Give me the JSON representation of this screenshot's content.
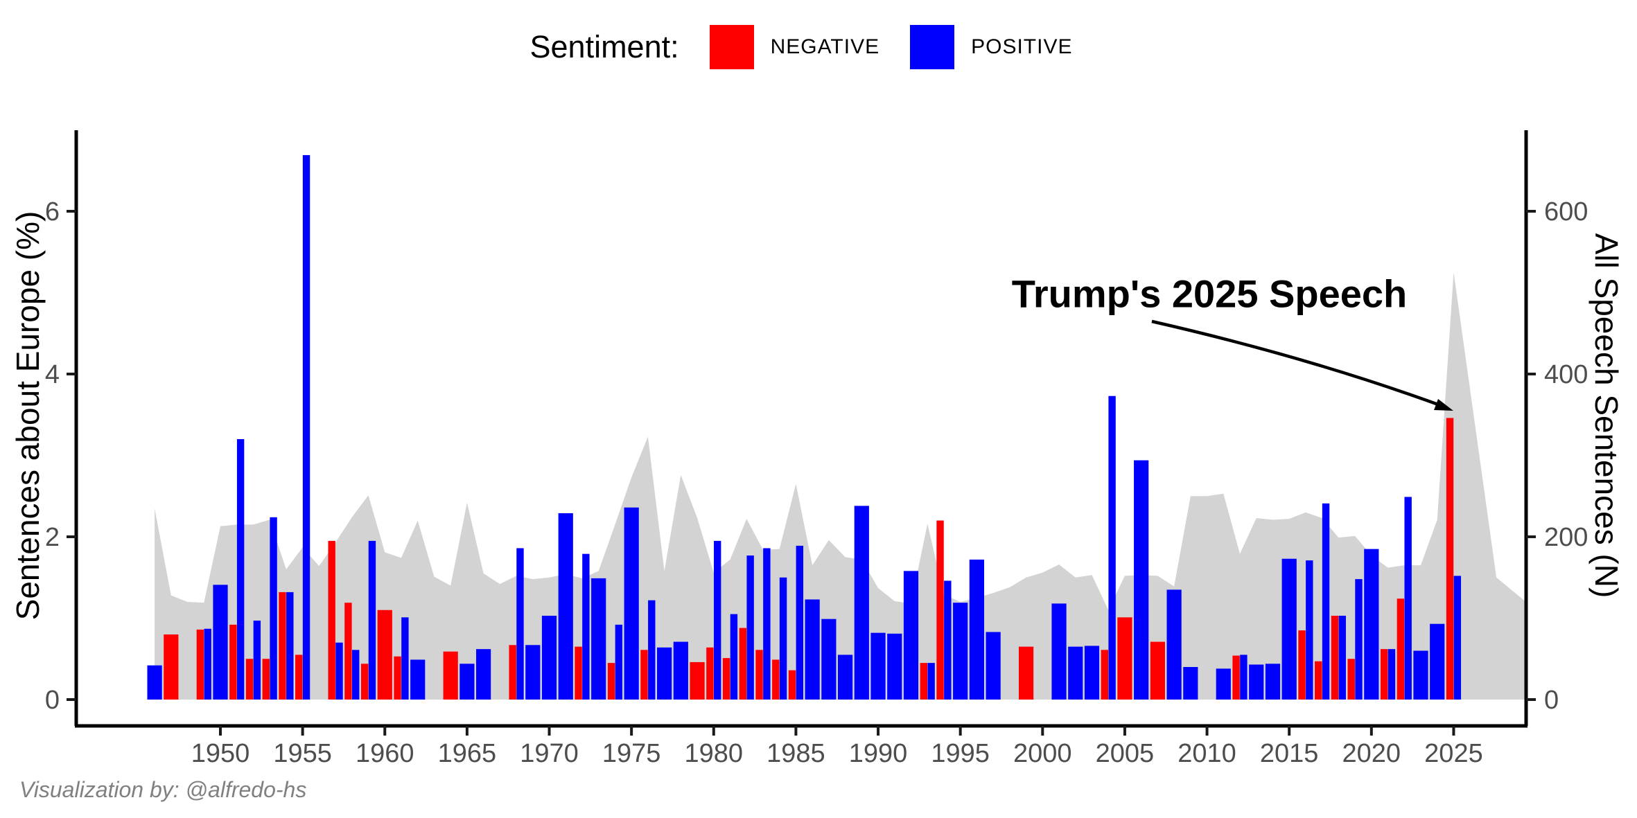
{
  "legend": {
    "title": "Sentiment:",
    "items": [
      {
        "label": "NEGATIVE",
        "color": "#FF0000"
      },
      {
        "label": "POSITIVE",
        "color": "#0000FF"
      }
    ]
  },
  "annotation": {
    "text": "Trump's 2025 Speech"
  },
  "attribution": {
    "text": "Visualization by: @alfredo-hs"
  },
  "chart_data": {
    "type": "bar",
    "title": "",
    "xlabel": "",
    "ylabel_left": "Sentences about Europe (%)",
    "ylabel_right": "All Speech Sentences (N)",
    "x_ticks": [
      1950,
      1955,
      1960,
      1965,
      1970,
      1975,
      1980,
      1985,
      1990,
      1995,
      2000,
      2005,
      2010,
      2015,
      2020,
      2025
    ],
    "y_ticks_left": [
      0,
      2,
      4,
      6
    ],
    "y_ticks_right": [
      0,
      200,
      400,
      600
    ],
    "ylim_left": [
      0,
      7
    ],
    "ylim_right": [
      0,
      700
    ],
    "legend_position": "top",
    "grid": false,
    "colors": {
      "negative": "#FF0000",
      "positive": "#0000FF",
      "total_area": "#D3D3D3"
    },
    "series_description": "negative/positive = % of speech sentences about Europe by sentiment (left axis); total_n = all speech sentences (right axis, gray area)",
    "years": [
      {
        "year": 1946,
        "negative": null,
        "positive": 0.42,
        "total_n": 235
      },
      {
        "year": 1947,
        "negative": 0.8,
        "positive": null,
        "total_n": 128
      },
      {
        "year": 1948,
        "negative": null,
        "positive": null,
        "total_n": 120
      },
      {
        "year": 1949,
        "negative": 0.86,
        "positive": 0.87,
        "total_n": 119
      },
      {
        "year": 1950,
        "negative": null,
        "positive": 1.41,
        "total_n": 213
      },
      {
        "year": 1951,
        "negative": 0.92,
        "positive": 3.2,
        "total_n": 215
      },
      {
        "year": 1952,
        "negative": 0.5,
        "positive": 0.97,
        "total_n": 215
      },
      {
        "year": 1953,
        "negative": 0.5,
        "positive": 2.24,
        "total_n": 221
      },
      {
        "year": 1954,
        "negative": 1.32,
        "positive": 1.32,
        "total_n": 160
      },
      {
        "year": 1955,
        "negative": 0.55,
        "positive": 6.69,
        "total_n": 187
      },
      {
        "year": 1956,
        "negative": null,
        "positive": null,
        "total_n": 164
      },
      {
        "year": 1957,
        "negative": 1.95,
        "positive": 0.7,
        "total_n": 193
      },
      {
        "year": 1958,
        "negative": 1.19,
        "positive": 0.61,
        "total_n": 224
      },
      {
        "year": 1959,
        "negative": 0.44,
        "positive": 1.95,
        "total_n": 251
      },
      {
        "year": 1960,
        "negative": 1.1,
        "positive": null,
        "total_n": 181
      },
      {
        "year": 1961,
        "negative": 0.53,
        "positive": 1.01,
        "total_n": 174
      },
      {
        "year": 1962,
        "negative": null,
        "positive": 0.49,
        "total_n": 220
      },
      {
        "year": 1963,
        "negative": null,
        "positive": null,
        "total_n": 151
      },
      {
        "year": 1964,
        "negative": 0.59,
        "positive": null,
        "total_n": 140
      },
      {
        "year": 1965,
        "negative": null,
        "positive": 0.44,
        "total_n": 242
      },
      {
        "year": 1966,
        "negative": null,
        "positive": 0.62,
        "total_n": 155
      },
      {
        "year": 1967,
        "negative": null,
        "positive": null,
        "total_n": 142
      },
      {
        "year": 1968,
        "negative": 0.67,
        "positive": 1.86,
        "total_n": 152
      },
      {
        "year": 1969,
        "negative": null,
        "positive": 0.67,
        "total_n": 148
      },
      {
        "year": 1970,
        "negative": null,
        "positive": 1.03,
        "total_n": 150
      },
      {
        "year": 1971,
        "negative": null,
        "positive": 2.29,
        "total_n": 154
      },
      {
        "year": 1972,
        "negative": 0.65,
        "positive": 1.79,
        "total_n": 149
      },
      {
        "year": 1973,
        "negative": null,
        "positive": 1.49,
        "total_n": 158
      },
      {
        "year": 1974,
        "negative": 0.45,
        "positive": 0.92,
        "total_n": 215
      },
      {
        "year": 1975,
        "negative": null,
        "positive": 2.36,
        "total_n": 273
      },
      {
        "year": 1976,
        "negative": 0.61,
        "positive": 1.22,
        "total_n": 323
      },
      {
        "year": 1977,
        "negative": null,
        "positive": 0.64,
        "total_n": 158
      },
      {
        "year": 1978,
        "negative": null,
        "positive": 0.71,
        "total_n": 276
      },
      {
        "year": 1979,
        "negative": 0.46,
        "positive": null,
        "total_n": 223
      },
      {
        "year": 1980,
        "negative": 0.64,
        "positive": 1.95,
        "total_n": 156
      },
      {
        "year": 1981,
        "negative": 0.51,
        "positive": 1.05,
        "total_n": 172
      },
      {
        "year": 1982,
        "negative": 0.88,
        "positive": 1.77,
        "total_n": 222
      },
      {
        "year": 1983,
        "negative": 0.61,
        "positive": 1.86,
        "total_n": 184
      },
      {
        "year": 1984,
        "negative": 0.49,
        "positive": 1.5,
        "total_n": 185
      },
      {
        "year": 1985,
        "negative": 0.36,
        "positive": 1.89,
        "total_n": 265
      },
      {
        "year": 1986,
        "negative": null,
        "positive": 1.23,
        "total_n": 165
      },
      {
        "year": 1987,
        "negative": null,
        "positive": 0.99,
        "total_n": 196
      },
      {
        "year": 1988,
        "negative": null,
        "positive": 0.55,
        "total_n": 175
      },
      {
        "year": 1989,
        "negative": null,
        "positive": 2.38,
        "total_n": 172
      },
      {
        "year": 1990,
        "negative": null,
        "positive": 0.82,
        "total_n": 137
      },
      {
        "year": 1991,
        "negative": null,
        "positive": 0.81,
        "total_n": 121
      },
      {
        "year": 1992,
        "negative": null,
        "positive": 1.58,
        "total_n": 118
      },
      {
        "year": 1993,
        "negative": 0.45,
        "positive": 0.45,
        "total_n": 216
      },
      {
        "year": 1994,
        "negative": 2.2,
        "positive": 1.46,
        "total_n": 129
      },
      {
        "year": 1995,
        "negative": null,
        "positive": 1.19,
        "total_n": 120
      },
      {
        "year": 1996,
        "negative": null,
        "positive": 1.72,
        "total_n": 125
      },
      {
        "year": 1997,
        "negative": null,
        "positive": 0.83,
        "total_n": 131
      },
      {
        "year": 1998,
        "negative": null,
        "positive": null,
        "total_n": 138
      },
      {
        "year": 1999,
        "negative": 0.65,
        "positive": null,
        "total_n": 150
      },
      {
        "year": 2000,
        "negative": null,
        "positive": null,
        "total_n": 156
      },
      {
        "year": 2001,
        "negative": null,
        "positive": 1.18,
        "total_n": 166
      },
      {
        "year": 2002,
        "negative": null,
        "positive": 0.65,
        "total_n": 150
      },
      {
        "year": 2003,
        "negative": null,
        "positive": 0.66,
        "total_n": 153
      },
      {
        "year": 2004,
        "negative": 0.61,
        "positive": 3.73,
        "total_n": 110
      },
      {
        "year": 2005,
        "negative": 1.01,
        "positive": null,
        "total_n": 152
      },
      {
        "year": 2006,
        "negative": null,
        "positive": 2.94,
        "total_n": 153
      },
      {
        "year": 2007,
        "negative": 0.71,
        "positive": null,
        "total_n": 152
      },
      {
        "year": 2008,
        "negative": null,
        "positive": 1.35,
        "total_n": 139
      },
      {
        "year": 2009,
        "negative": null,
        "positive": 0.4,
        "total_n": 250
      },
      {
        "year": 2010,
        "negative": null,
        "positive": null,
        "total_n": 250
      },
      {
        "year": 2011,
        "negative": null,
        "positive": 0.38,
        "total_n": 253
      },
      {
        "year": 2012,
        "negative": 0.54,
        "positive": 0.55,
        "total_n": 179
      },
      {
        "year": 2013,
        "negative": null,
        "positive": 0.43,
        "total_n": 223
      },
      {
        "year": 2014,
        "negative": null,
        "positive": 0.44,
        "total_n": 221
      },
      {
        "year": 2015,
        "negative": null,
        "positive": 1.73,
        "total_n": 222
      },
      {
        "year": 2016,
        "negative": 0.85,
        "positive": 1.71,
        "total_n": 230
      },
      {
        "year": 2017,
        "negative": 0.47,
        "positive": 2.41,
        "total_n": 223
      },
      {
        "year": 2018,
        "negative": 1.03,
        "positive": 1.03,
        "total_n": 199
      },
      {
        "year": 2019,
        "negative": 0.5,
        "positive": 1.48,
        "total_n": 201
      },
      {
        "year": 2020,
        "negative": null,
        "positive": 1.85,
        "total_n": 177
      },
      {
        "year": 2021,
        "negative": 0.62,
        "positive": 0.62,
        "total_n": 162
      },
      {
        "year": 2022,
        "negative": 1.24,
        "positive": 2.49,
        "total_n": 165
      },
      {
        "year": 2023,
        "negative": null,
        "positive": 0.6,
        "total_n": 165
      },
      {
        "year": 2024,
        "negative": null,
        "positive": 0.93,
        "total_n": 221
      },
      {
        "year": 2025,
        "negative": 3.46,
        "positive": 1.52,
        "total_n": 525
      }
    ],
    "area_tail": [
      {
        "year": 2027.6,
        "total_n": 150
      },
      {
        "year": 2029.4,
        "total_n": 120
      }
    ]
  }
}
